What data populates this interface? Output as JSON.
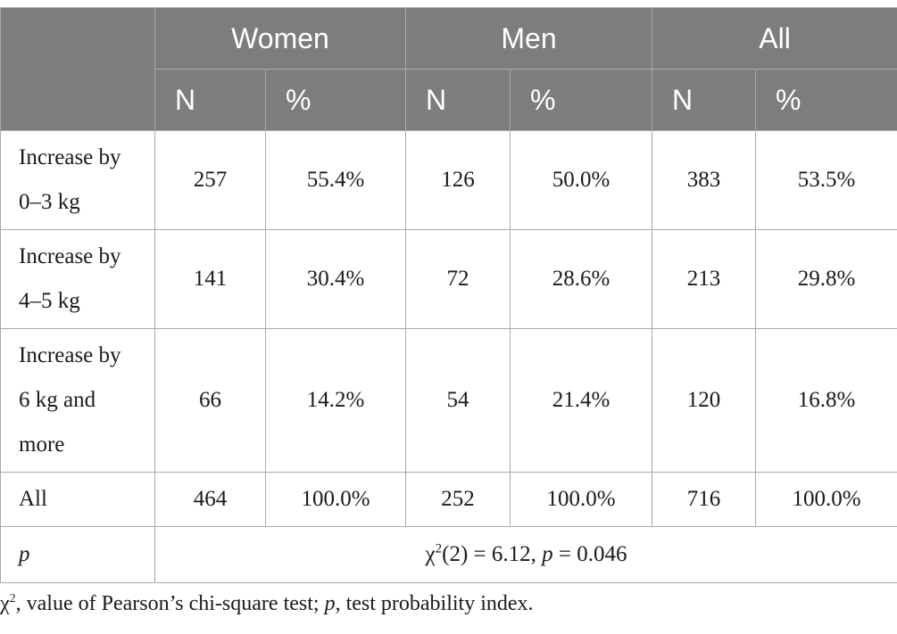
{
  "table": {
    "groups": [
      "Women",
      "Men",
      "All"
    ],
    "subheaders": [
      "N",
      "%",
      "N",
      "%",
      "N",
      "%"
    ],
    "rows": [
      {
        "label_line1": "Increase by",
        "label_line2": "0–3 kg",
        "label_line3": "",
        "cells": [
          "257",
          "55.4%",
          "126",
          "50.0%",
          "383",
          "53.5%"
        ]
      },
      {
        "label_line1": "Increase by",
        "label_line2": "4–5 kg",
        "label_line3": "",
        "cells": [
          "141",
          "30.4%",
          "72",
          "28.6%",
          "213",
          "29.8%"
        ]
      },
      {
        "label_line1": "Increase by",
        "label_line2": "6 kg and",
        "label_line3": "more",
        "cells": [
          "66",
          "14.2%",
          "54",
          "21.4%",
          "120",
          "16.8%"
        ]
      },
      {
        "label_line1": "All",
        "label_line2": "",
        "label_line3": "",
        "cells": [
          "464",
          "100.0%",
          "252",
          "100.0%",
          "716",
          "100.0%"
        ]
      }
    ],
    "p_row": {
      "label": "p",
      "stat": {
        "chi": "χ",
        "sup": "2",
        "df": "(2) = 6.12, ",
        "p_symbol": "p",
        "p_value": " = 0.046"
      }
    }
  },
  "footnote": {
    "chi": "χ",
    "sup": "2",
    "text1": ", value of Pearson’s chi-square test; ",
    "p_symbol": "p",
    "text2": ", test probability index."
  }
}
